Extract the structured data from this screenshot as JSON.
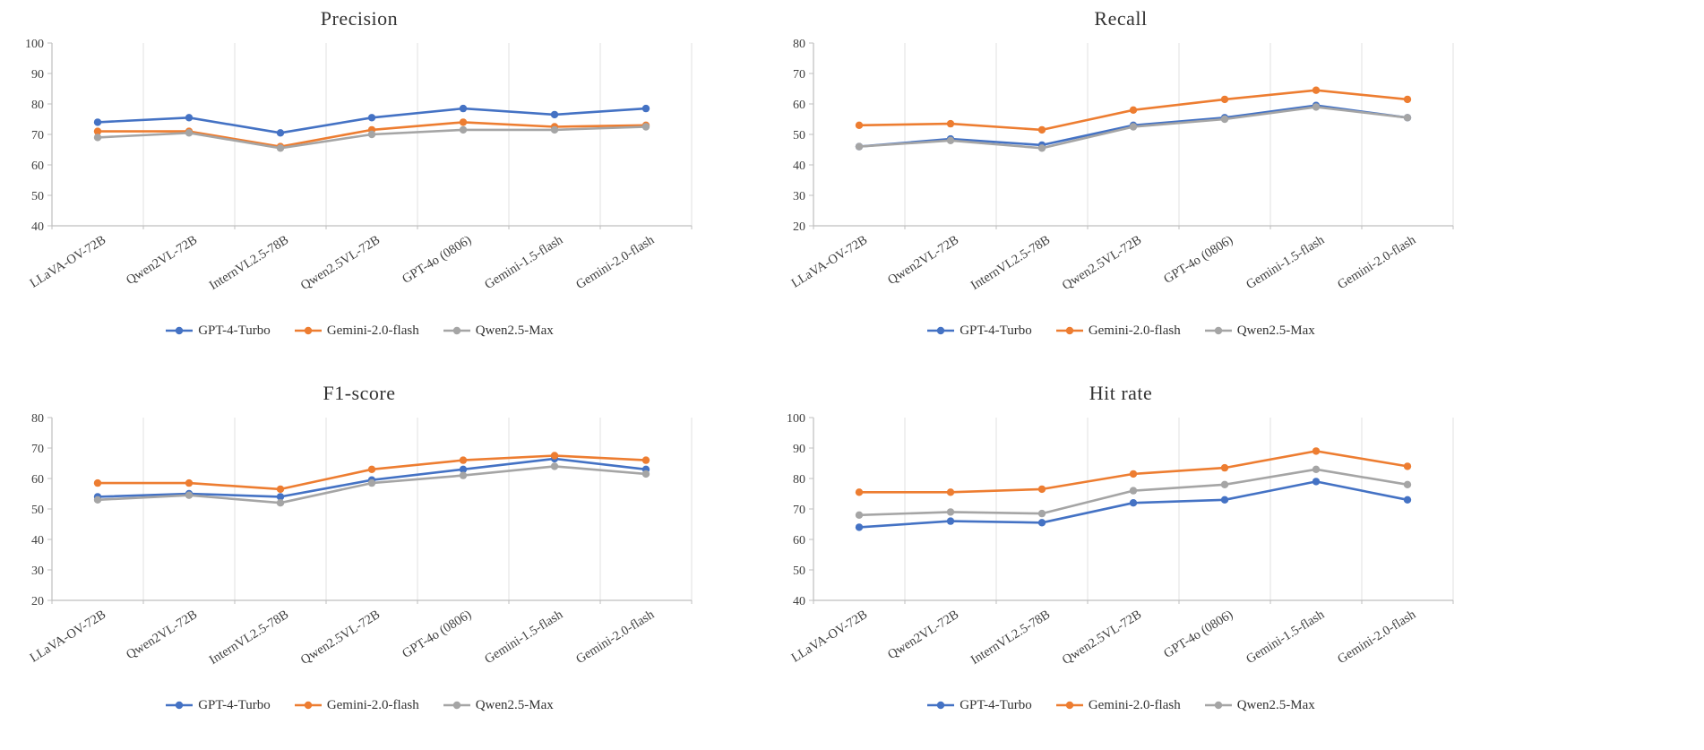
{
  "page": {
    "background": "#FFFFFF",
    "text_color": "#404040"
  },
  "colors": {
    "series_blue": "#4472C4",
    "series_orange": "#ED7D31",
    "series_gray": "#A5A5A5",
    "gridline": "#E2E2E2",
    "axis": "#BFBFBF"
  },
  "legend_labels": [
    "GPT-4-Turbo",
    "Gemini-2.0-flash",
    "Qwen2.5-Max"
  ],
  "chart_data": [
    {
      "type": "line",
      "title": "Precision",
      "categories": [
        "LLaVA-OV-72B",
        "Qwen2VL-72B",
        "InternVL2.5-78B",
        "Qwen2.5VL-72B",
        "GPT-4o (0806)",
        "Gemini-1.5-flash",
        "Gemini-2.0-flash"
      ],
      "ylim": [
        40,
        100
      ],
      "ytick_step": 10,
      "grid": "vertical",
      "legend_position": "bottom",
      "series": [
        {
          "name": "GPT-4-Turbo",
          "color": "#4472C4",
          "values": [
            74,
            75.5,
            70.5,
            75.5,
            78.5,
            76.5,
            78.5
          ]
        },
        {
          "name": "Gemini-2.0-flash",
          "color": "#ED7D31",
          "values": [
            71,
            71,
            66,
            71.5,
            74,
            72.5,
            73
          ]
        },
        {
          "name": "Qwen2.5-Max",
          "color": "#A5A5A5",
          "values": [
            69,
            70.5,
            65.5,
            70,
            71.5,
            71.5,
            72.5
          ]
        }
      ]
    },
    {
      "type": "line",
      "title": "Recall",
      "categories": [
        "LLaVA-OV-72B",
        "Qwen2VL-72B",
        "InternVL2.5-78B",
        "Qwen2.5VL-72B",
        "GPT-4o (0806)",
        "Gemini-1.5-flash",
        "Gemini-2.0-flash"
      ],
      "ylim": [
        20,
        80
      ],
      "ytick_step": 10,
      "grid": "vertical",
      "legend_position": "bottom",
      "series": [
        {
          "name": "GPT-4-Turbo",
          "color": "#4472C4",
          "values": [
            46,
            48.5,
            46.5,
            53,
            55.5,
            59.5,
            55.5
          ]
        },
        {
          "name": "Gemini-2.0-flash",
          "color": "#ED7D31",
          "values": [
            53,
            53.5,
            51.5,
            58,
            61.5,
            64.5,
            61.5
          ]
        },
        {
          "name": "Qwen2.5-Max",
          "color": "#A5A5A5",
          "values": [
            46,
            48,
            45.5,
            52.5,
            55,
            59,
            55.5
          ]
        }
      ]
    },
    {
      "type": "line",
      "title": "F1-score",
      "categories": [
        "LLaVA-OV-72B",
        "Qwen2VL-72B",
        "InternVL2.5-78B",
        "Qwen2.5VL-72B",
        "GPT-4o (0806)",
        "Gemini-1.5-flash",
        "Gemini-2.0-flash"
      ],
      "ylim": [
        20,
        80
      ],
      "ytick_step": 10,
      "grid": "vertical",
      "legend_position": "bottom",
      "series": [
        {
          "name": "GPT-4-Turbo",
          "color": "#4472C4",
          "values": [
            54,
            55,
            54,
            59.5,
            63,
            66.5,
            63
          ]
        },
        {
          "name": "Gemini-2.0-flash",
          "color": "#ED7D31",
          "values": [
            58.5,
            58.5,
            56.5,
            63,
            66,
            67.5,
            66
          ]
        },
        {
          "name": "Qwen2.5-Max",
          "color": "#A5A5A5",
          "values": [
            53,
            54.5,
            52,
            58.5,
            61,
            64,
            61.5
          ]
        }
      ]
    },
    {
      "type": "line",
      "title": "Hit rate",
      "categories": [
        "LLaVA-OV-72B",
        "Qwen2VL-72B",
        "InternVL2.5-78B",
        "Qwen2.5VL-72B",
        "GPT-4o (0806)",
        "Gemini-1.5-flash",
        "Gemini-2.0-flash"
      ],
      "ylim": [
        40,
        100
      ],
      "ytick_step": 10,
      "grid": "vertical",
      "legend_position": "bottom",
      "series": [
        {
          "name": "GPT-4-Turbo",
          "color": "#4472C4",
          "values": [
            64,
            66,
            65.5,
            72,
            73,
            79,
            73
          ]
        },
        {
          "name": "Gemini-2.0-flash",
          "color": "#ED7D31",
          "values": [
            75.5,
            75.5,
            76.5,
            81.5,
            83.5,
            89,
            84
          ]
        },
        {
          "name": "Qwen2.5-Max",
          "color": "#A5A5A5",
          "values": [
            68,
            69,
            68.5,
            76,
            78,
            83,
            78
          ]
        }
      ]
    }
  ]
}
